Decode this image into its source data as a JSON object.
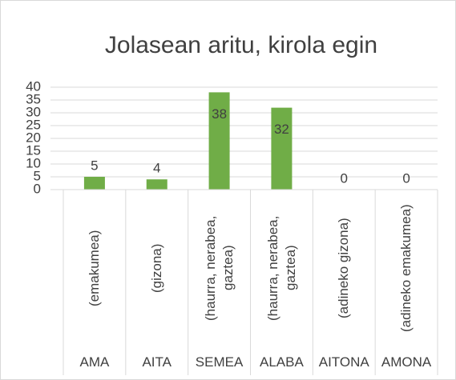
{
  "chart_data": {
    "type": "bar",
    "title": "Jolasean aritu, kirola egin",
    "categories": [
      "AMA",
      "AITA",
      "SEMEA",
      "ALABA",
      "AITONA",
      "AMONA"
    ],
    "subcategories": [
      "(emakumea)",
      "(gizona)",
      "(haurra, nerabea, gaztea)",
      "(haurra, nerabea, gaztea)",
      "(adineko gizona)",
      "(adineko emakumea)"
    ],
    "values": [
      5,
      4,
      38,
      32,
      0,
      0
    ],
    "color": "#70ad47",
    "ylim": [
      0,
      40
    ],
    "yticks": [
      0,
      5,
      10,
      15,
      20,
      25,
      30,
      35,
      40
    ],
    "grid": true
  }
}
